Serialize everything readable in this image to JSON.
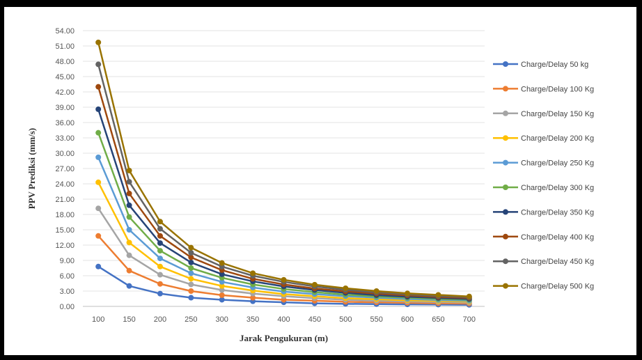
{
  "chart_data": {
    "type": "line",
    "title": "",
    "xlabel": "Jarak Pengukuran (m)",
    "ylabel": "PPV Prediksi (mm/s)",
    "ylim": [
      0,
      54
    ],
    "grid": true,
    "legend_position": "right",
    "categories": [
      "100",
      "150",
      "200",
      "250",
      "300",
      "350",
      "400",
      "450",
      "500",
      "550",
      "600",
      "650",
      "700"
    ],
    "y_ticks": [
      "0.00",
      "3.00",
      "6.00",
      "9.00",
      "12.00",
      "15.00",
      "18.00",
      "21.00",
      "24.00",
      "27.00",
      "30.00",
      "33.00",
      "36.00",
      "39.00",
      "42.00",
      "45.00",
      "48.00",
      "51.00",
      "54.00"
    ],
    "series": [
      {
        "name": "Charge/Delay 50 kg",
        "color": "#4472C4",
        "values": [
          7.8,
          4.0,
          2.5,
          1.7,
          1.3,
          1.0,
          0.8,
          0.6,
          0.5,
          0.45,
          0.4,
          0.35,
          0.3
        ]
      },
      {
        "name": "Charge/Delay 100 Kg",
        "color": "#ED7D31",
        "values": [
          13.8,
          7.0,
          4.4,
          3.0,
          2.2,
          1.7,
          1.3,
          1.1,
          0.9,
          0.8,
          0.7,
          0.6,
          0.55
        ]
      },
      {
        "name": "Charge/Delay 150 Kg",
        "color": "#A5A5A5",
        "values": [
          19.2,
          10.0,
          6.2,
          4.3,
          3.2,
          2.5,
          2.0,
          1.6,
          1.3,
          1.1,
          0.95,
          0.85,
          0.75
        ]
      },
      {
        "name": "Charge/Delay 200 Kg",
        "color": "#FFC000",
        "values": [
          24.3,
          12.5,
          7.8,
          5.4,
          4.0,
          3.1,
          2.4,
          2.0,
          1.6,
          1.4,
          1.2,
          1.05,
          0.95
        ]
      },
      {
        "name": "Charge/Delay 250 Kg",
        "color": "#5B9BD5",
        "values": [
          29.2,
          15.0,
          9.4,
          6.5,
          4.8,
          3.7,
          2.9,
          2.4,
          2.0,
          1.7,
          1.45,
          1.25,
          1.1
        ]
      },
      {
        "name": "Charge/Delay 300 Kg",
        "color": "#70AD47",
        "values": [
          34.0,
          17.5,
          10.9,
          7.5,
          5.6,
          4.3,
          3.4,
          2.8,
          2.3,
          1.95,
          1.7,
          1.45,
          1.3
        ]
      },
      {
        "name": "Charge/Delay 350 Kg",
        "color": "#264478",
        "values": [
          38.6,
          19.8,
          12.4,
          8.6,
          6.3,
          4.9,
          3.9,
          3.2,
          2.65,
          2.2,
          1.9,
          1.65,
          1.45
        ]
      },
      {
        "name": "Charge/Delay 400 Kg",
        "color": "#9E480E",
        "values": [
          43.0,
          22.1,
          13.8,
          9.6,
          7.1,
          5.4,
          4.3,
          3.5,
          2.95,
          2.5,
          2.15,
          1.85,
          1.65
        ]
      },
      {
        "name": "Charge/Delay 450 Kg",
        "color": "#636363",
        "values": [
          47.4,
          24.4,
          15.2,
          10.5,
          7.8,
          6.0,
          4.8,
          3.9,
          3.25,
          2.75,
          2.35,
          2.05,
          1.8
        ]
      },
      {
        "name": "Charge/Delay 500 Kg",
        "color": "#997300",
        "values": [
          51.7,
          26.6,
          16.6,
          11.5,
          8.5,
          6.5,
          5.2,
          4.25,
          3.55,
          3.0,
          2.55,
          2.25,
          1.95
        ]
      }
    ]
  }
}
